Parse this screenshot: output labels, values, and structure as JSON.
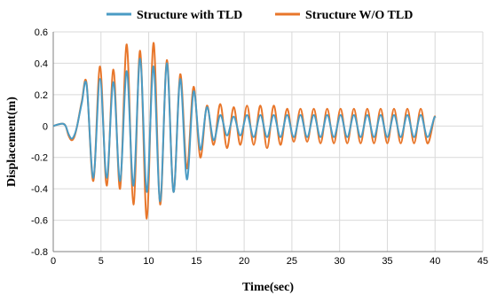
{
  "chart_data": {
    "type": "line",
    "xlabel": "Time(sec)",
    "ylabel": "Displacement(m)",
    "xlim": [
      0,
      45
    ],
    "ylim": [
      -0.8,
      0.6
    ],
    "xticks": [
      0,
      5,
      10,
      15,
      20,
      25,
      30,
      35,
      40,
      45
    ],
    "yticks": [
      -0.8,
      -0.6,
      -0.4,
      -0.2,
      0,
      0.2,
      0.4,
      0.6
    ],
    "xtick_labels": [
      "0",
      "5",
      "10",
      "15",
      "20",
      "25",
      "30",
      "35",
      "40",
      "45"
    ],
    "ytick_labels": [
      "-0.8",
      "-0.6",
      "-0.4",
      "-0.2",
      "0",
      "0.2",
      "0.4",
      "0.6"
    ],
    "grid": true,
    "legend_position": "top",
    "series": [
      {
        "name": "Structure with TLD",
        "color": "#4a9bc4",
        "x": [
          0,
          0.5,
          1.0,
          1.3,
          1.6,
          1.9,
          2.2,
          2.5,
          3.0,
          3.5,
          4.2,
          4.9,
          5.6,
          6.3,
          7.0,
          7.7,
          8.4,
          9.1,
          9.8,
          10.5,
          11.2,
          11.9,
          12.6,
          13.3,
          14.0,
          14.7,
          15.4,
          16.1,
          16.8,
          17.5,
          18.2,
          18.9,
          19.6,
          20.3,
          21.0,
          21.7,
          22.4,
          23.1,
          23.8,
          24.5,
          25.2,
          25.9,
          26.6,
          27.3,
          28.0,
          28.7,
          29.4,
          30.1,
          30.8,
          31.5,
          32.2,
          32.9,
          33.6,
          34.3,
          35.0,
          35.7,
          36.4,
          37.1,
          37.8,
          38.5,
          39.2,
          39.9,
          40.0
        ],
        "values": [
          0.0,
          0.01,
          0.015,
          0.0,
          -0.05,
          -0.08,
          -0.06,
          0.0,
          0.15,
          0.26,
          -0.33,
          0.3,
          -0.33,
          0.28,
          -0.35,
          0.35,
          -0.38,
          0.43,
          -0.42,
          0.38,
          -0.48,
          0.4,
          -0.42,
          0.3,
          -0.34,
          0.22,
          -0.15,
          0.12,
          -0.09,
          0.07,
          -0.06,
          0.06,
          -0.06,
          0.07,
          -0.07,
          0.07,
          -0.07,
          0.07,
          -0.07,
          0.07,
          -0.07,
          0.07,
          -0.07,
          0.07,
          -0.07,
          0.07,
          -0.07,
          0.07,
          -0.07,
          0.07,
          -0.07,
          0.07,
          -0.07,
          0.07,
          -0.07,
          0.07,
          -0.07,
          0.07,
          -0.07,
          0.07,
          -0.07,
          0.05,
          0.05
        ]
      },
      {
        "name": "Structure W/O TLD",
        "color": "#e8762a",
        "x": [
          0,
          0.5,
          1.0,
          1.3,
          1.6,
          1.9,
          2.2,
          2.5,
          3.0,
          3.5,
          4.2,
          4.9,
          5.6,
          6.3,
          7.0,
          7.7,
          8.4,
          9.1,
          9.8,
          10.5,
          11.2,
          11.9,
          12.6,
          13.3,
          14.0,
          14.7,
          15.4,
          16.1,
          16.8,
          17.5,
          18.2,
          18.9,
          19.6,
          20.3,
          21.0,
          21.7,
          22.4,
          23.1,
          23.8,
          24.5,
          25.2,
          25.9,
          26.6,
          27.3,
          28.0,
          28.7,
          29.4,
          30.1,
          30.8,
          31.5,
          32.2,
          32.9,
          33.6,
          34.3,
          35.0,
          35.7,
          36.4,
          37.1,
          37.8,
          38.5,
          39.2,
          39.9,
          40.0
        ],
        "values": [
          0.0,
          0.01,
          0.015,
          0.0,
          -0.06,
          -0.09,
          -0.07,
          0.0,
          0.16,
          0.27,
          -0.35,
          0.38,
          -0.38,
          0.36,
          -0.4,
          0.52,
          -0.5,
          0.48,
          -0.59,
          0.53,
          -0.5,
          0.42,
          -0.42,
          0.33,
          -0.27,
          0.25,
          -0.2,
          0.13,
          -0.12,
          0.14,
          -0.14,
          0.12,
          -0.12,
          0.13,
          -0.12,
          0.13,
          -0.14,
          0.13,
          -0.12,
          0.11,
          -0.1,
          0.11,
          -0.1,
          0.11,
          -0.11,
          0.11,
          -0.11,
          0.11,
          -0.11,
          0.11,
          -0.11,
          0.11,
          -0.11,
          0.11,
          -0.11,
          0.11,
          -0.11,
          0.11,
          -0.11,
          0.11,
          -0.11,
          0.05,
          0.05
        ]
      }
    ]
  }
}
